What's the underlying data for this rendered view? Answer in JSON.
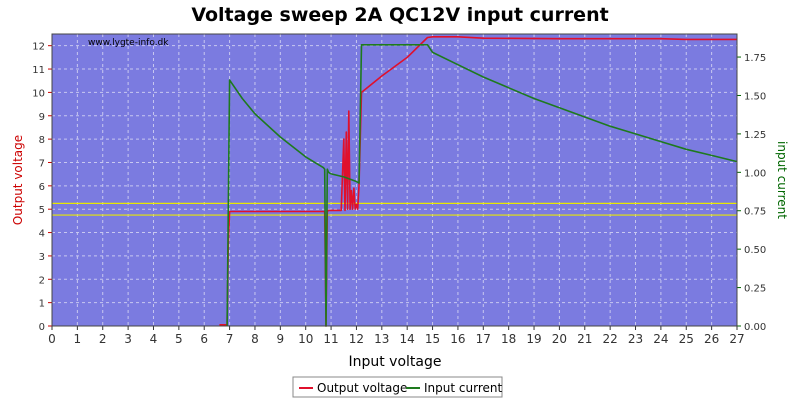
{
  "chart_data": {
    "type": "line",
    "title": "Voltage sweep 2A QC12V input current",
    "xlabel": "Input voltage",
    "ylabel_left": "Output voltage",
    "ylabel_right": "input current",
    "watermark": "www.lygte-info.dk",
    "xlim": [
      0,
      27
    ],
    "ylim_left": [
      0,
      12.5
    ],
    "ylim_right": [
      0,
      1.9
    ],
    "x_ticks": [
      "0",
      "1",
      "2",
      "3",
      "4",
      "5",
      "6",
      "7",
      "8",
      "9",
      "10",
      "11",
      "12",
      "13",
      "14",
      "15",
      "16",
      "17",
      "18",
      "19",
      "20",
      "21",
      "22",
      "23",
      "24",
      "25",
      "26",
      "27"
    ],
    "y_left_ticks": [
      "0",
      "1",
      "2",
      "3",
      "4",
      "5",
      "6",
      "7",
      "8",
      "9",
      "10",
      "11",
      "12"
    ],
    "y_right_ticks": [
      "0.00",
      "0.25",
      "0.50",
      "0.75",
      "1.00",
      "1.25",
      "1.50",
      "1.75"
    ],
    "grid": true,
    "legend_position": "bottom-center",
    "colors": {
      "plot_background": "#7B7BE0",
      "output_voltage": "#E0102C",
      "input_current": "#1E7A1E",
      "reference_lines": "#E8E800",
      "left_axis_text": "#CC0000",
      "right_axis_text": "#006600"
    },
    "reference_lines_left_axis": [
      4.75,
      5.25
    ],
    "series": [
      {
        "name": "Output voltage",
        "axis": "left",
        "x": [
          6.6,
          6.9,
          6.95,
          7.0,
          8.0,
          9.0,
          10.0,
          10.75,
          10.8,
          10.85,
          10.9,
          11.0,
          11.4,
          11.5,
          11.55,
          11.6,
          11.65,
          11.7,
          11.75,
          11.8,
          11.85,
          11.9,
          11.95,
          12.0,
          12.05,
          12.1,
          12.2,
          13.0,
          14.0,
          14.8,
          15.0,
          16.0,
          17.0,
          20.0,
          24.0,
          24.5,
          25.0,
          27.0
        ],
        "y": [
          0.05,
          0.05,
          3.5,
          4.9,
          4.9,
          4.9,
          4.9,
          4.9,
          0.0,
          4.9,
          4.95,
          4.95,
          4.95,
          8.0,
          4.95,
          8.3,
          5.0,
          9.2,
          5.0,
          5.8,
          5.0,
          5.9,
          5.0,
          5.2,
          5.0,
          6.0,
          10.0,
          10.7,
          11.5,
          12.35,
          12.38,
          12.38,
          12.32,
          12.3,
          12.3,
          12.28,
          12.27,
          12.27
        ]
      },
      {
        "name": "Input current",
        "axis": "right",
        "x": [
          6.9,
          7.0,
          7.5,
          8.0,
          9.0,
          10.0,
          10.7,
          10.75,
          10.8,
          10.85,
          10.9,
          11.0,
          11.5,
          12.0,
          12.1,
          12.2,
          13.0,
          14.0,
          14.8,
          15.0,
          16.0,
          17.0,
          18.0,
          19.0,
          20.0,
          21.0,
          22.0,
          23.0,
          24.0,
          25.0,
          26.0,
          27.0
        ],
        "y": [
          0.0,
          1.6,
          1.48,
          1.38,
          1.23,
          1.1,
          1.03,
          1.02,
          0.0,
          1.02,
          1.0,
          0.99,
          0.97,
          0.94,
          0.93,
          1.83,
          1.83,
          1.83,
          1.83,
          1.78,
          1.7,
          1.62,
          1.55,
          1.48,
          1.42,
          1.36,
          1.3,
          1.25,
          1.2,
          1.15,
          1.11,
          1.07
        ]
      }
    ]
  }
}
